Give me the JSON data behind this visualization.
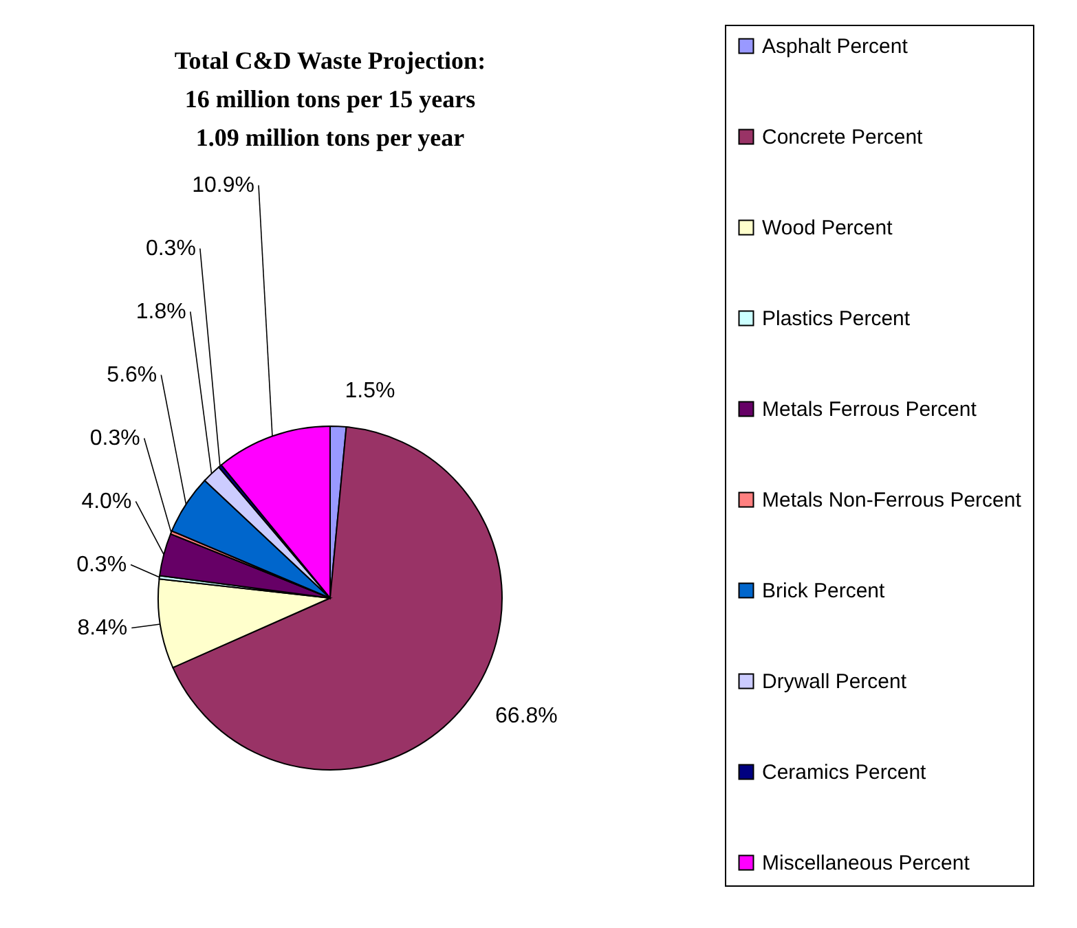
{
  "chart_data": {
    "type": "pie",
    "title": [
      "Total C&D Waste Projection:",
      "16 million tons per 15 years",
      "1.09 million tons per year"
    ],
    "categories": [
      "Asphalt Percent",
      "Concrete Percent",
      "Wood Percent",
      "Plastics Percent",
      "Metals Ferrous Percent",
      "Metals Non-Ferrous Percent",
      "Brick Percent",
      "Drywall Percent",
      "Ceramics Percent",
      "Miscellaneous Percent"
    ],
    "values": [
      1.5,
      66.8,
      8.4,
      0.3,
      4.0,
      0.3,
      5.6,
      1.8,
      0.3,
      10.9
    ],
    "colors": [
      "#9999ff",
      "#993366",
      "#ffffcc",
      "#ccffff",
      "#660066",
      "#ff8080",
      "#0066cc",
      "#ccccff",
      "#000080",
      "#ff00ff"
    ],
    "value_labels": [
      "1.5%",
      "66.8%",
      "8.4%",
      "0.3%",
      "4.0%",
      "0.3%",
      "5.6%",
      "1.8%",
      "0.3%",
      "10.9%"
    ],
    "legend": "right"
  }
}
